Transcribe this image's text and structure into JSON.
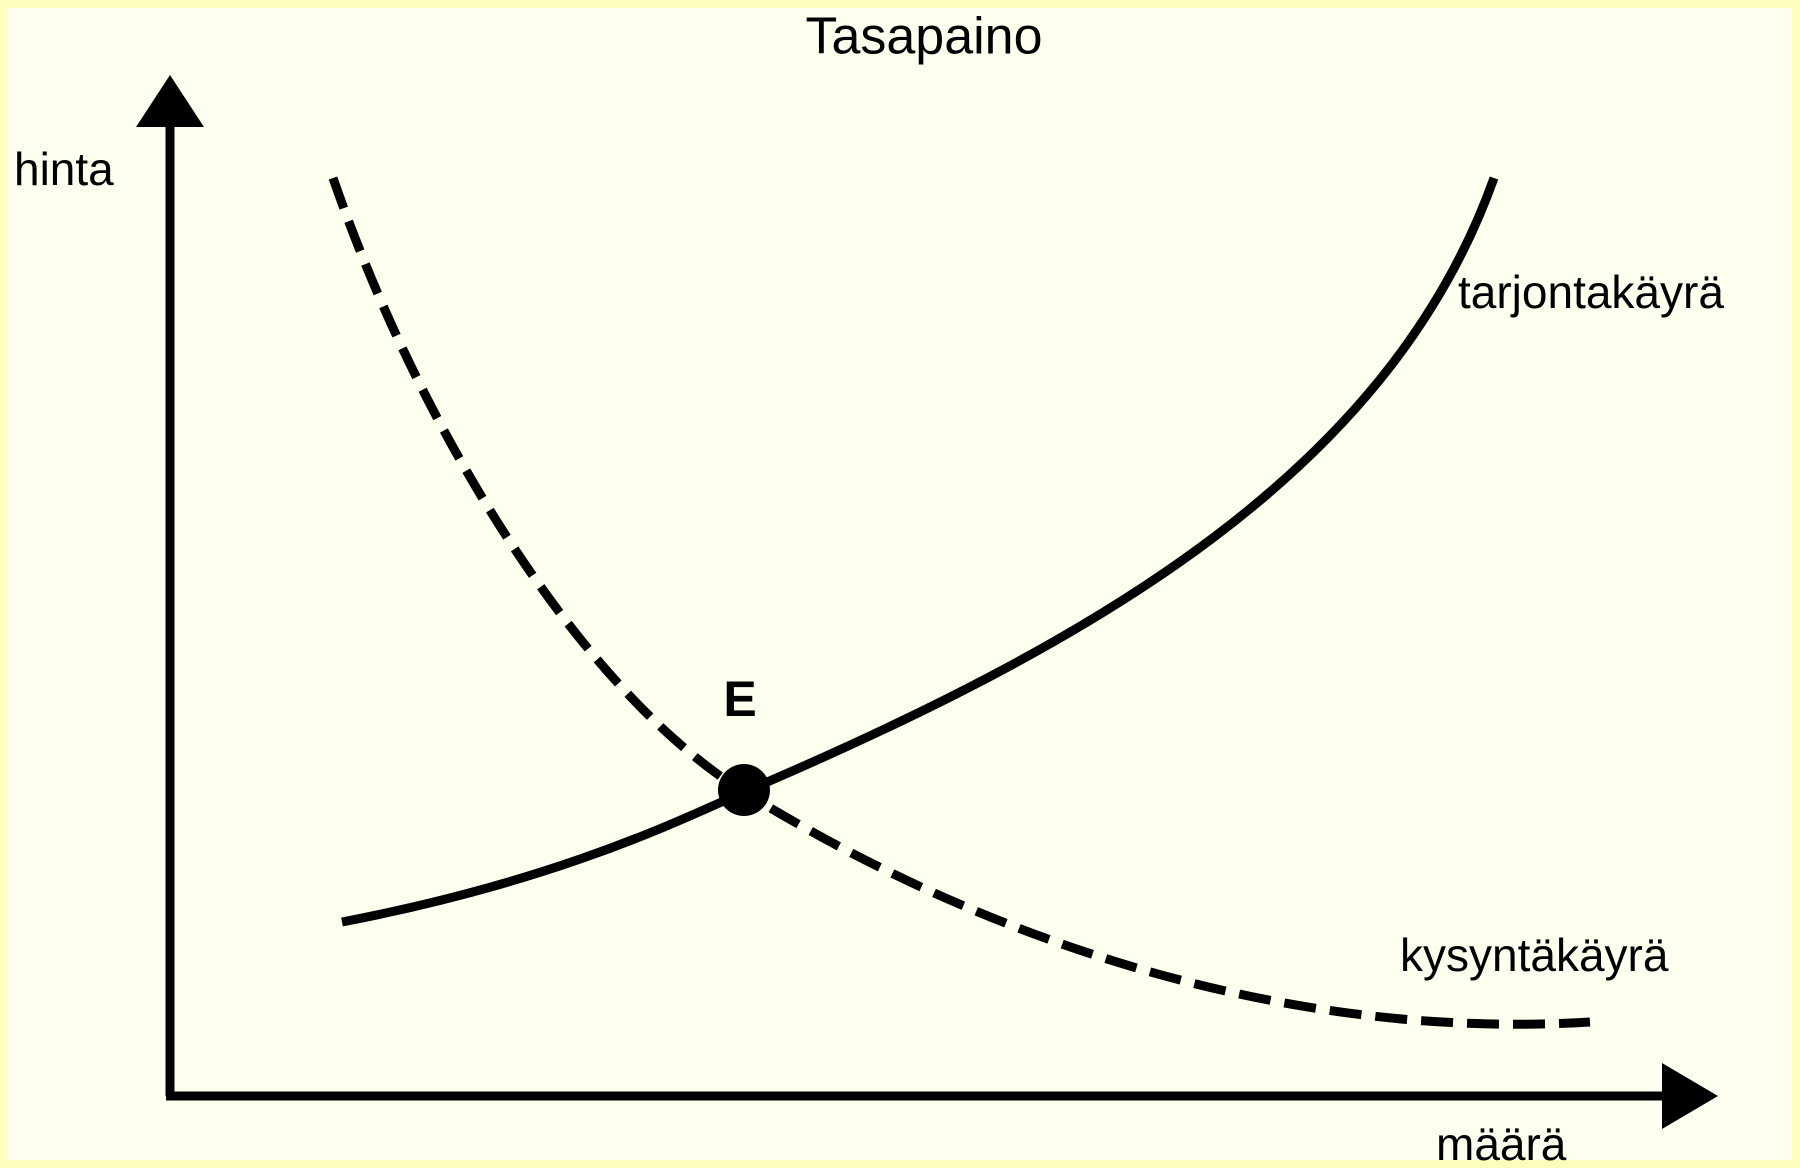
{
  "title": "Tasapaino",
  "axes": {
    "y_label": "hinta",
    "x_label": "määrä"
  },
  "curves": [
    {
      "label": "tarjontakäyrä"
    },
    {
      "label": "kysyntäkäyrä"
    }
  ],
  "equilibrium": {
    "label": "E"
  }
}
